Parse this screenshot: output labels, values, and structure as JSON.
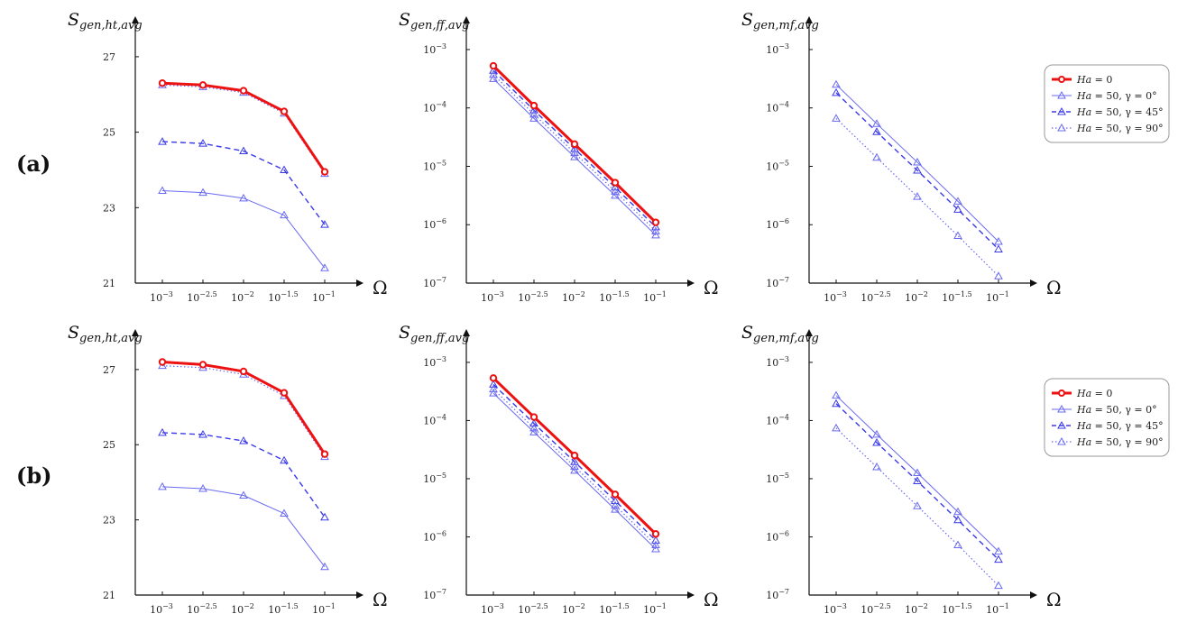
{
  "rows": [
    {
      "label": "(a)"
    },
    {
      "label": "(b)"
    }
  ],
  "x_axis": {
    "label": "Ω",
    "tick_values": [
      -3,
      -2.5,
      -2,
      -1.5,
      -1
    ],
    "tick_base": "10",
    "tick_exponents": [
      "−3",
      "−2.5",
      "−2",
      "−1.5",
      "−1"
    ]
  },
  "legend": [
    {
      "pre": "Ha",
      "post": " = 0",
      "color": "#ee1111",
      "dash": "solid",
      "width": 3,
      "marker": "circle"
    },
    {
      "pre": "Ha",
      "post": " = 50, γ = 0°",
      "color": "#6a6af0",
      "dash": "solid",
      "width": 1,
      "marker": "triangle"
    },
    {
      "pre": "Ha",
      "post": " = 50, γ = 45°",
      "color": "#3a3ae8",
      "dash": "dashed",
      "width": 1.4,
      "marker": "triangle"
    },
    {
      "pre": "Ha",
      "post": " = 50, γ = 90°",
      "color": "#6a6af0",
      "dash": "dotted",
      "width": 1.2,
      "marker": "triangle"
    }
  ],
  "chart_data": [
    {
      "type": "line",
      "row": "(a)",
      "title": "",
      "ylabel_main": "S",
      "ylabel_sub": "gen,ht,avg",
      "xlabel": "Ω",
      "yscale": "linear",
      "ylim": [
        21,
        27.5
      ],
      "y_ticks": [
        {
          "v": 21,
          "t": "21"
        },
        {
          "v": 23,
          "t": "23"
        },
        {
          "v": 25,
          "t": "25"
        },
        {
          "v": 27,
          "t": "27"
        }
      ],
      "x": [
        -3,
        -2.5,
        -2,
        -1.5,
        -1
      ],
      "series": [
        {
          "name": "Ha = 0",
          "values": [
            26.3,
            26.25,
            26.1,
            25.55,
            23.95
          ]
        },
        {
          "name": "Ha = 50, γ = 0°",
          "values": [
            23.45,
            23.4,
            23.25,
            22.8,
            21.4
          ]
        },
        {
          "name": "Ha = 50, γ = 45°",
          "values": [
            24.75,
            24.7,
            24.5,
            24.0,
            22.55
          ]
        },
        {
          "name": "Ha = 50, γ = 90°",
          "values": [
            26.25,
            26.2,
            26.05,
            25.5,
            23.9
          ]
        }
      ]
    },
    {
      "type": "line",
      "row": "(a)",
      "title": "",
      "ylabel_main": "S",
      "ylabel_sub": "gen,ff,avg",
      "xlabel": "Ω",
      "yscale": "log",
      "ylim": [
        -7,
        -2.8
      ],
      "y_ticks": [
        {
          "v": -7,
          "b": "10",
          "e": "−7"
        },
        {
          "v": -6,
          "b": "10",
          "e": "−6"
        },
        {
          "v": -5,
          "b": "10",
          "e": "−5"
        },
        {
          "v": -4,
          "b": "10",
          "e": "−4"
        },
        {
          "v": -3,
          "b": "10",
          "e": "−3"
        }
      ],
      "x": [
        -3,
        -2.5,
        -2,
        -1.5,
        -1
      ],
      "series": [
        {
          "name": "Ha = 0",
          "values": [
            -3.28,
            -3.96,
            -4.62,
            -5.28,
            -5.96
          ]
        },
        {
          "name": "Ha = 50, γ = 0°",
          "values": [
            -3.5,
            -4.18,
            -4.84,
            -5.5,
            -6.18
          ]
        },
        {
          "name": "Ha = 50, γ = 45°",
          "values": [
            -3.36,
            -4.04,
            -4.7,
            -5.36,
            -6.04
          ]
        },
        {
          "name": "Ha = 50, γ = 90°",
          "values": [
            -3.43,
            -4.11,
            -4.77,
            -5.43,
            -6.11
          ]
        }
      ]
    },
    {
      "type": "line",
      "row": "(a)",
      "title": "",
      "ylabel_main": "S",
      "ylabel_sub": "gen,mf,avg",
      "xlabel": "Ω",
      "yscale": "log",
      "ylim": [
        -7,
        -2.8
      ],
      "y_ticks": [
        {
          "v": -7,
          "b": "10",
          "e": "−7"
        },
        {
          "v": -6,
          "b": "10",
          "e": "−6"
        },
        {
          "v": -5,
          "b": "10",
          "e": "−5"
        },
        {
          "v": -4,
          "b": "10",
          "e": "−4"
        },
        {
          "v": -3,
          "b": "10",
          "e": "−3"
        }
      ],
      "x": [
        -3,
        -2.5,
        -2,
        -1.5,
        -1
      ],
      "series": [
        {
          "name": "Ha = 50, γ = 0°",
          "values": [
            -3.6,
            -4.27,
            -4.93,
            -5.6,
            -6.29
          ]
        },
        {
          "name": "Ha = 50, γ = 45°",
          "values": [
            -3.74,
            -4.41,
            -5.07,
            -5.74,
            -6.42
          ]
        },
        {
          "name": "Ha = 50, γ = 90°",
          "values": [
            -4.18,
            -4.85,
            -5.52,
            -6.19,
            -6.88
          ]
        }
      ]
    },
    {
      "type": "line",
      "row": "(b)",
      "title": "",
      "ylabel_main": "S",
      "ylabel_sub": "gen,ht,avg",
      "xlabel": "Ω",
      "yscale": "linear",
      "ylim": [
        21,
        27.5
      ],
      "y_ticks": [
        {
          "v": 21,
          "t": "21"
        },
        {
          "v": 23,
          "t": "23"
        },
        {
          "v": 25,
          "t": "25"
        },
        {
          "v": 27,
          "t": "27"
        }
      ],
      "x": [
        -3,
        -2.5,
        -2,
        -1.5,
        -1
      ],
      "series": [
        {
          "name": "Ha = 0",
          "values": [
            27.2,
            27.13,
            26.95,
            26.38,
            24.75
          ]
        },
        {
          "name": "Ha = 50, γ = 0°",
          "values": [
            23.88,
            23.83,
            23.65,
            23.17,
            21.75
          ]
        },
        {
          "name": "Ha = 50, γ = 45°",
          "values": [
            25.32,
            25.27,
            25.1,
            24.58,
            23.07
          ]
        },
        {
          "name": "Ha = 50, γ = 90°",
          "values": [
            27.1,
            27.05,
            26.87,
            26.3,
            24.68
          ]
        }
      ]
    },
    {
      "type": "line",
      "row": "(b)",
      "title": "",
      "ylabel_main": "S",
      "ylabel_sub": "gen,ff,avg",
      "xlabel": "Ω",
      "yscale": "log",
      "ylim": [
        -7,
        -2.8
      ],
      "y_ticks": [
        {
          "v": -7,
          "b": "10",
          "e": "−7"
        },
        {
          "v": -6,
          "b": "10",
          "e": "−6"
        },
        {
          "v": -5,
          "b": "10",
          "e": "−5"
        },
        {
          "v": -4,
          "b": "10",
          "e": "−4"
        },
        {
          "v": -3,
          "b": "10",
          "e": "−3"
        }
      ],
      "x": [
        -3,
        -2.5,
        -2,
        -1.5,
        -1
      ],
      "series": [
        {
          "name": "Ha = 0",
          "values": [
            -3.27,
            -3.94,
            -4.6,
            -5.27,
            -5.95
          ]
        },
        {
          "name": "Ha = 50, γ = 0°",
          "values": [
            -3.53,
            -4.2,
            -4.86,
            -5.53,
            -6.21
          ]
        },
        {
          "name": "Ha = 50, γ = 45°",
          "values": [
            -3.38,
            -4.05,
            -4.71,
            -5.38,
            -6.06
          ]
        },
        {
          "name": "Ha = 50, γ = 90°",
          "values": [
            -3.46,
            -4.13,
            -4.79,
            -5.46,
            -6.14
          ]
        }
      ]
    },
    {
      "type": "line",
      "row": "(b)",
      "title": "",
      "ylabel_main": "S",
      "ylabel_sub": "gen,mf,avg",
      "xlabel": "Ω",
      "yscale": "log",
      "ylim": [
        -7,
        -2.8
      ],
      "y_ticks": [
        {
          "v": -7,
          "b": "10",
          "e": "−7"
        },
        {
          "v": -6,
          "b": "10",
          "e": "−6"
        },
        {
          "v": -5,
          "b": "10",
          "e": "−5"
        },
        {
          "v": -4,
          "b": "10",
          "e": "−4"
        },
        {
          "v": -3,
          "b": "10",
          "e": "−3"
        }
      ],
      "x": [
        -3,
        -2.5,
        -2,
        -1.5,
        -1
      ],
      "series": [
        {
          "name": "Ha = 50, γ = 0°",
          "values": [
            -3.57,
            -4.24,
            -4.9,
            -5.57,
            -6.25
          ]
        },
        {
          "name": "Ha = 50, γ = 45°",
          "values": [
            -3.71,
            -4.38,
            -5.04,
            -5.71,
            -6.39
          ]
        },
        {
          "name": "Ha = 50, γ = 90°",
          "values": [
            -4.13,
            -4.8,
            -5.47,
            -6.14,
            -6.84
          ]
        }
      ]
    }
  ]
}
